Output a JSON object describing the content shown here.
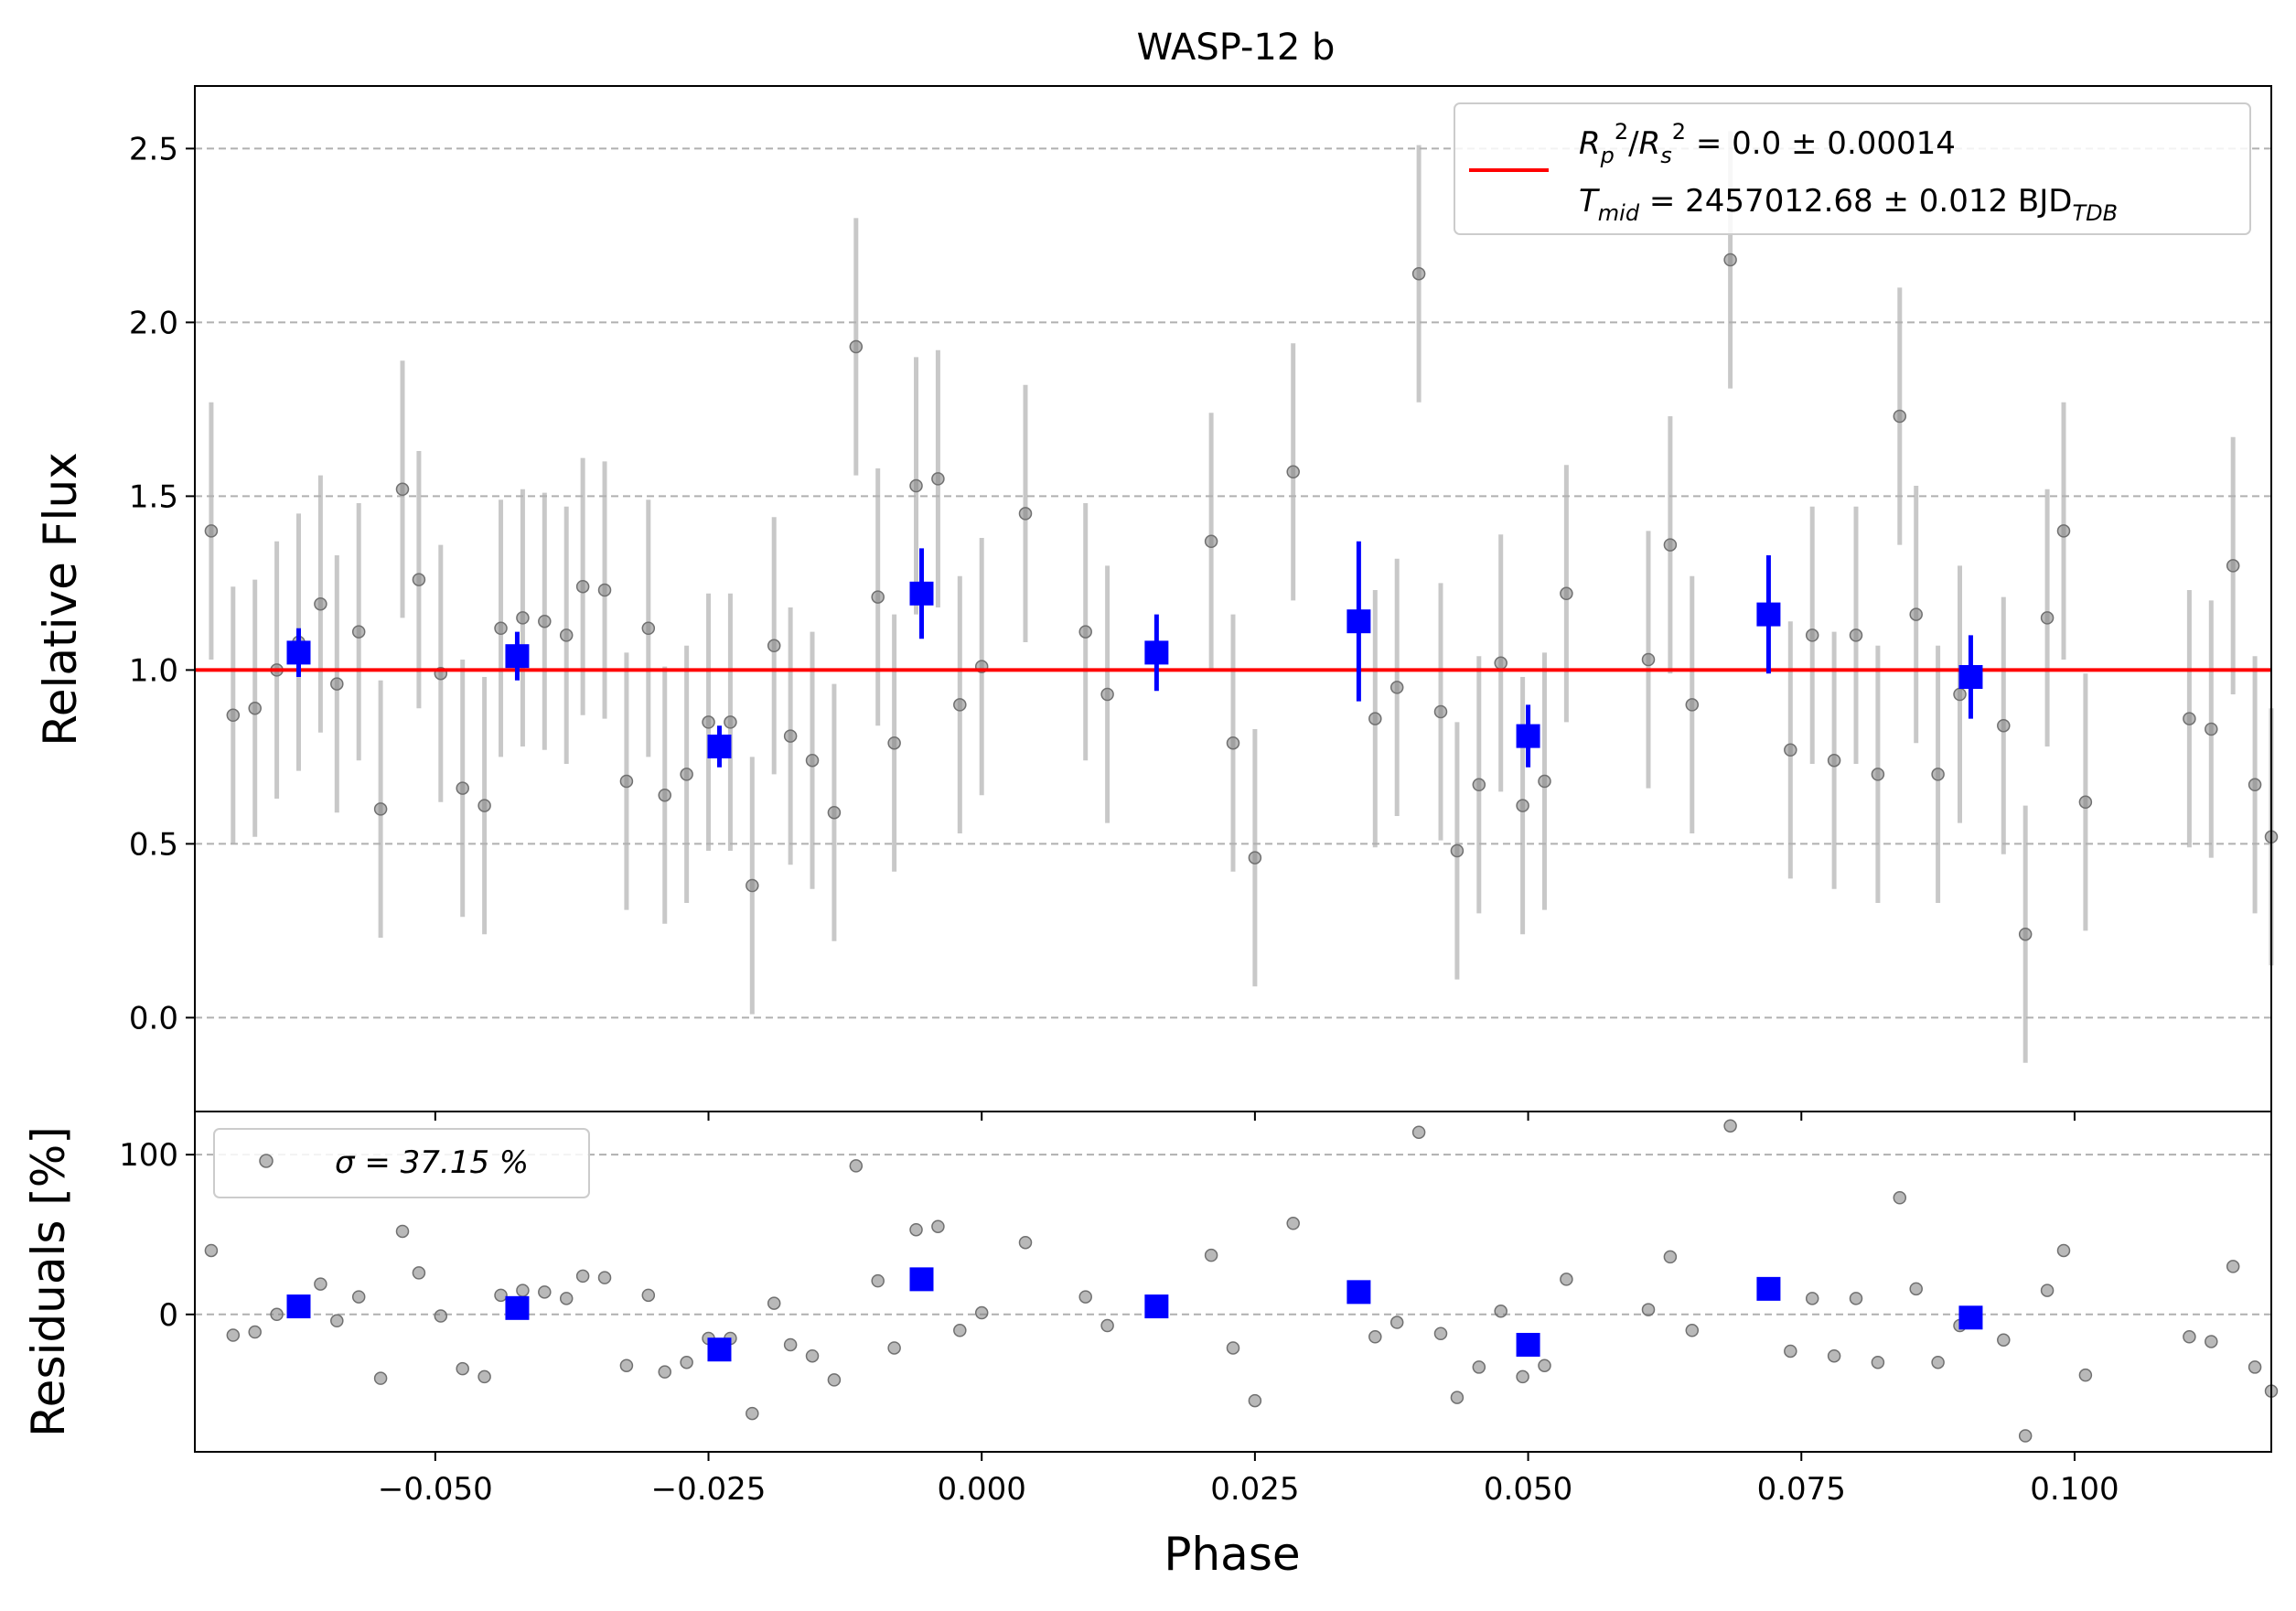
{
  "chart_data": {
    "type": "scatter",
    "title": "WASP-12 b",
    "xlabel": "Phase",
    "top_panel": {
      "ylabel": "Relative Flux",
      "xlim": [
        -0.072,
        0.118
      ],
      "ylim": [
        -0.27,
        2.68
      ],
      "yticks": [
        0.0,
        0.5,
        1.0,
        1.5,
        2.0,
        2.5
      ],
      "ytick_labels": [
        "0.0",
        "0.5",
        "1.0",
        "1.5",
        "2.0",
        "2.5"
      ],
      "grid": "horizontal dashed",
      "model_line": {
        "y": 1.0,
        "color": "#ff0000"
      },
      "legend": {
        "position": "top-right",
        "line1": "R_p²/R_s² = 0.0 ± 0.00014",
        "line2": "T_mid = 2457012.68 ± 0.012 BJD_TDB"
      },
      "raw": [
        [
          -0.0705,
          1.4,
          0.37
        ],
        [
          -0.0685,
          0.87,
          0.37
        ],
        [
          -0.0665,
          0.89,
          0.37
        ],
        [
          -0.0645,
          1.0,
          0.37
        ],
        [
          -0.0625,
          1.08,
          0.37
        ],
        [
          -0.0605,
          1.19,
          0.37
        ],
        [
          -0.059,
          0.96,
          0.37
        ],
        [
          -0.057,
          1.11,
          0.37
        ],
        [
          -0.055,
          0.6,
          0.37
        ],
        [
          -0.053,
          1.52,
          0.37
        ],
        [
          -0.0515,
          1.26,
          0.37
        ],
        [
          -0.0495,
          0.99,
          0.37
        ],
        [
          -0.0475,
          0.66,
          0.37
        ],
        [
          -0.0455,
          0.61,
          0.37
        ],
        [
          -0.044,
          1.12,
          0.37
        ],
        [
          -0.042,
          1.15,
          0.37
        ],
        [
          -0.04,
          1.14,
          0.37
        ],
        [
          -0.038,
          1.1,
          0.37
        ],
        [
          -0.0365,
          1.24,
          0.37
        ],
        [
          -0.0345,
          1.23,
          0.37
        ],
        [
          -0.0325,
          0.68,
          0.37
        ],
        [
          -0.0305,
          1.12,
          0.37
        ],
        [
          -0.029,
          0.64,
          0.37
        ],
        [
          -0.027,
          0.7,
          0.37
        ],
        [
          -0.025,
          0.85,
          0.37
        ],
        [
          -0.023,
          0.85,
          0.37
        ],
        [
          -0.021,
          0.38,
          0.37
        ],
        [
          -0.019,
          1.07,
          0.37
        ],
        [
          -0.0175,
          0.81,
          0.37
        ],
        [
          -0.0155,
          0.74,
          0.37
        ],
        [
          -0.0135,
          0.59,
          0.37
        ],
        [
          -0.0115,
          1.93,
          0.37
        ],
        [
          -0.0095,
          1.21,
          0.37
        ],
        [
          -0.008,
          0.79,
          0.37
        ],
        [
          -0.006,
          1.53,
          0.37
        ],
        [
          -0.004,
          1.55,
          0.37
        ],
        [
          -0.002,
          0.9,
          0.37
        ],
        [
          0.0,
          1.01,
          0.37
        ],
        [
          0.004,
          1.45,
          0.37
        ],
        [
          0.0095,
          1.11,
          0.37
        ],
        [
          0.0115,
          0.93,
          0.37
        ],
        [
          0.021,
          1.37,
          0.37
        ],
        [
          0.023,
          0.79,
          0.37
        ],
        [
          0.025,
          0.46,
          0.37
        ],
        [
          0.0285,
          1.57,
          0.37
        ],
        [
          0.036,
          0.86,
          0.37
        ],
        [
          0.038,
          0.95,
          0.37
        ],
        [
          0.04,
          2.14,
          0.37
        ],
        [
          0.042,
          0.88,
          0.37
        ],
        [
          0.0435,
          0.48,
          0.37
        ],
        [
          0.0455,
          0.67,
          0.37
        ],
        [
          0.0475,
          1.02,
          0.37
        ],
        [
          0.0495,
          0.61,
          0.37
        ],
        [
          0.0515,
          0.68,
          0.37
        ],
        [
          0.0535,
          1.22,
          0.37
        ],
        [
          0.061,
          1.03,
          0.37
        ],
        [
          0.063,
          1.36,
          0.37
        ],
        [
          0.065,
          0.9,
          0.37
        ],
        [
          0.0685,
          2.18,
          0.37
        ],
        [
          0.074,
          0.77,
          0.37
        ],
        [
          0.076,
          1.1,
          0.37
        ],
        [
          0.078,
          0.74,
          0.37
        ],
        [
          0.08,
          1.1,
          0.37
        ],
        [
          0.082,
          0.7,
          0.37
        ],
        [
          0.084,
          1.73,
          0.37
        ],
        [
          0.0855,
          1.16,
          0.37
        ],
        [
          0.0875,
          0.7,
          0.37
        ],
        [
          0.0895,
          0.93,
          0.37
        ],
        [
          0.0935,
          0.84,
          0.37
        ],
        [
          0.0955,
          0.24,
          0.37
        ],
        [
          0.0975,
          1.15,
          0.37
        ],
        [
          0.099,
          1.4,
          0.37
        ],
        [
          0.101,
          0.62,
          0.37
        ],
        [
          0.1105,
          0.86,
          0.37
        ],
        [
          0.1125,
          0.83,
          0.37
        ],
        [
          0.1145,
          1.3,
          0.37
        ],
        [
          0.1165,
          0.67,
          0.37
        ],
        [
          0.118,
          0.52,
          0.37
        ]
      ],
      "binned": [
        [
          -0.0625,
          1.05,
          0.07
        ],
        [
          -0.0425,
          1.04,
          0.07
        ],
        [
          -0.024,
          0.78,
          0.06
        ],
        [
          -0.0055,
          1.22,
          0.13
        ],
        [
          0.016,
          1.05,
          0.11
        ],
        [
          0.0345,
          1.14,
          0.23
        ],
        [
          0.05,
          0.81,
          0.09
        ],
        [
          0.072,
          1.16,
          0.17
        ],
        [
          0.0905,
          0.98,
          0.12
        ]
      ]
    },
    "bottom_panel": {
      "ylabel": "Residuals [%]",
      "ylim": [
        -86,
        127
      ],
      "yticks": [
        0,
        100
      ],
      "ytick_labels": [
        "0",
        "100"
      ],
      "xticks": [
        -0.05,
        -0.025,
        0.0,
        0.025,
        0.05,
        0.075,
        0.1
      ],
      "xtick_labels": [
        "−0.050",
        "−0.025",
        "0.000",
        "0.025",
        "0.050",
        "0.075",
        "0.100"
      ],
      "legend": {
        "position": "top-left",
        "label": "σ = 37.15 %"
      }
    },
    "colors": {
      "raw": "#808080",
      "binned": "#0000ff",
      "model": "#ff0000"
    }
  }
}
